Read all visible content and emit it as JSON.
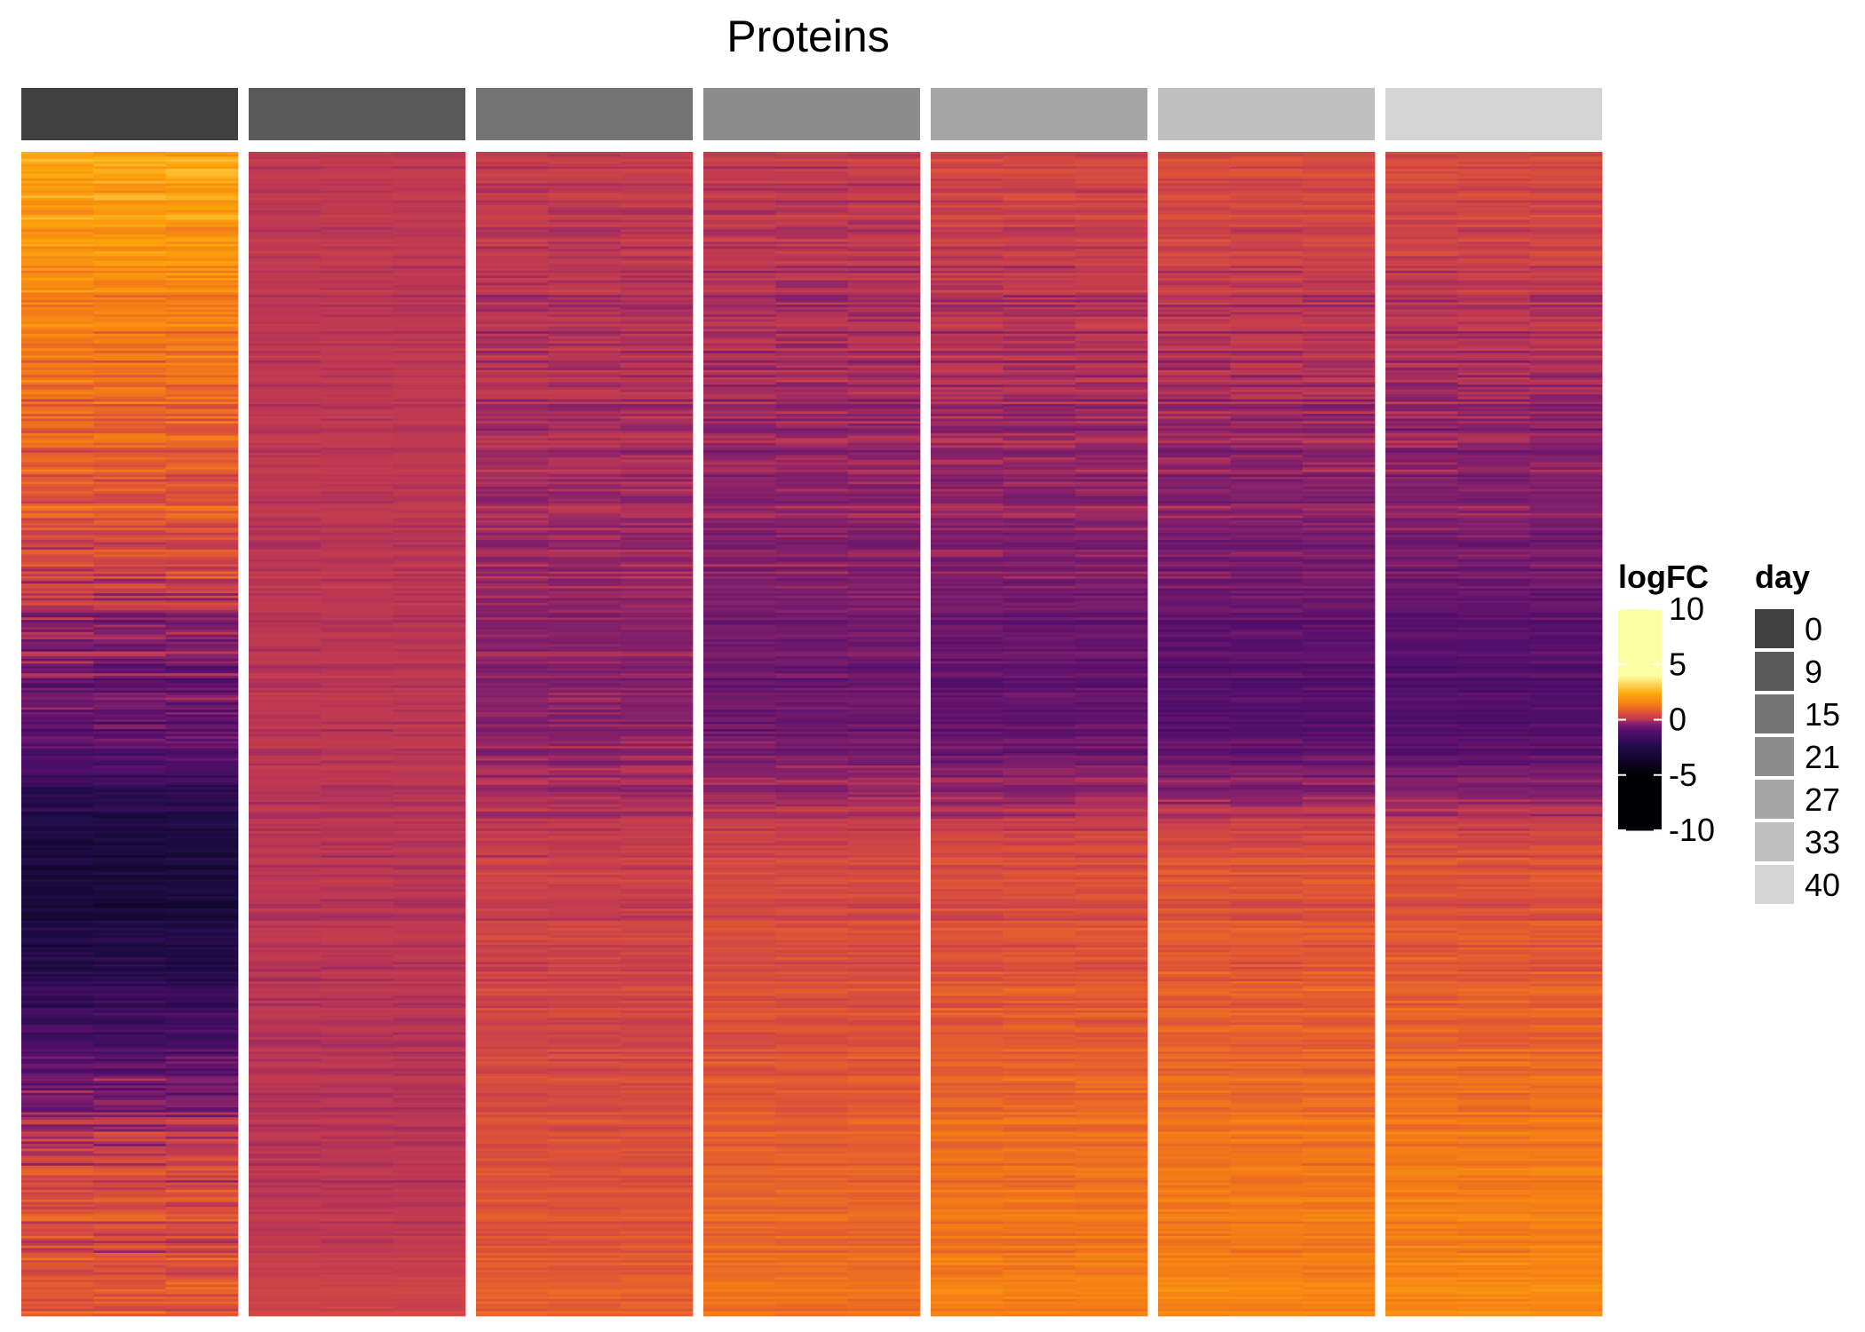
{
  "chart_data": {
    "type": "heatmap",
    "title": "Proteins",
    "days": [
      "0",
      "9",
      "15",
      "21",
      "27",
      "33",
      "40"
    ],
    "day_colors": [
      "#404040",
      "#595959",
      "#737373",
      "#8c8c8c",
      "#a6a6a6",
      "#bfbfbf",
      "#d4d4d4"
    ],
    "replicates_per_day": 3,
    "n_rows": 480,
    "color_scale": {
      "name": "logFC",
      "min": -10,
      "max": 10,
      "ticks": [
        "10",
        "5",
        "0",
        "-5",
        "-10"
      ],
      "tick_values": [
        10,
        5,
        0,
        -5,
        -10
      ],
      "stops": [
        {
          "value": -10,
          "color": "#000004"
        },
        {
          "value": -5,
          "color": "#000004"
        },
        {
          "value": -2.5,
          "color": "#1f0c48"
        },
        {
          "value": -1,
          "color": "#550f6d"
        },
        {
          "value": -0.3,
          "color": "#88226a"
        },
        {
          "value": 0,
          "color": "#bc3754"
        },
        {
          "value": 0.6,
          "color": "#dd513a"
        },
        {
          "value": 1.3,
          "color": "#f37819"
        },
        {
          "value": 2.3,
          "color": "#fca50a"
        },
        {
          "value": 4,
          "color": "#fcffa4"
        },
        {
          "value": 10,
          "color": "#fcffa4"
        }
      ]
    },
    "annotation_legend": {
      "name": "day"
    },
    "profiles": [
      {
        "day": "0",
        "top": 2.2,
        "mid": -0.8,
        "low": -3.0,
        "bottom": 0.4,
        "jitter": 0.8
      },
      {
        "day": "9",
        "top": 0.05,
        "mid": 0.0,
        "low": 0.0,
        "bottom": 0.0,
        "jitter": 0.2
      },
      {
        "day": "15",
        "top": 0.1,
        "mid": -0.4,
        "low": 0.2,
        "bottom": 0.6,
        "jitter": 0.35
      },
      {
        "day": "21",
        "top": 0.1,
        "mid": -0.7,
        "low": 0.4,
        "bottom": 0.9,
        "jitter": 0.4
      },
      {
        "day": "27",
        "top": 0.3,
        "mid": -0.9,
        "low": 0.5,
        "bottom": 1.2,
        "jitter": 0.45
      },
      {
        "day": "33",
        "top": 0.4,
        "mid": -1.1,
        "low": 0.6,
        "bottom": 1.3,
        "jitter": 0.45
      },
      {
        "day": "40",
        "top": 0.4,
        "mid": -1.2,
        "low": 0.6,
        "bottom": 1.4,
        "jitter": 0.45
      }
    ]
  }
}
